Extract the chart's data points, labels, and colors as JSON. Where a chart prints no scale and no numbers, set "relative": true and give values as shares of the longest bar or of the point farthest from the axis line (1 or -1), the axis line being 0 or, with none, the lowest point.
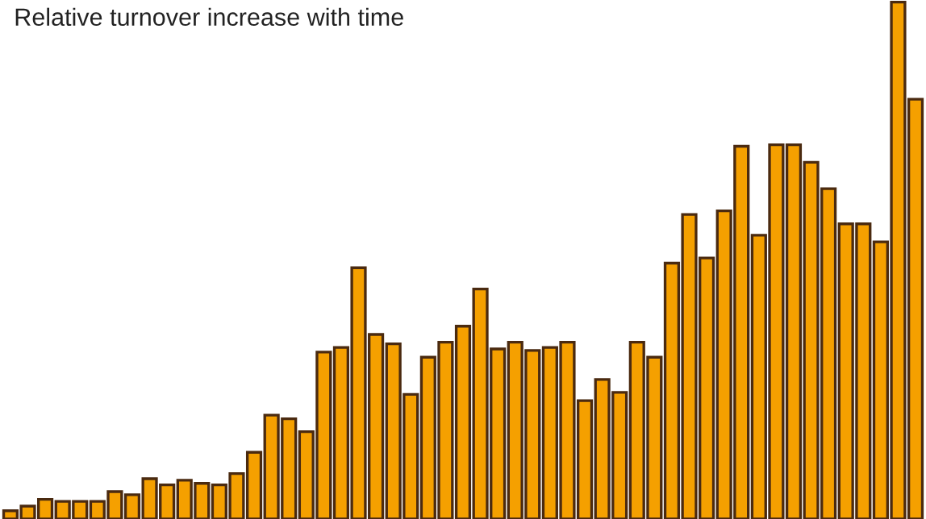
{
  "chart_data": {
    "type": "bar",
    "title": "Relative turnover increase with time",
    "relative": true,
    "color": "#f5a000",
    "categories": [
      null,
      null,
      null,
      null,
      null,
      null,
      null,
      null,
      null,
      null,
      null,
      null,
      null,
      null,
      null,
      null,
      null,
      null,
      null,
      null,
      null,
      null,
      null,
      null,
      null,
      null,
      null,
      null,
      null,
      null,
      null,
      null,
      null,
      null,
      null,
      null,
      null,
      null,
      null,
      null,
      null,
      null,
      null,
      null,
      null,
      null,
      null,
      null,
      null,
      null,
      null,
      null,
      null
    ],
    "values": [
      0.016,
      0.025,
      0.038,
      0.034,
      0.034,
      0.034,
      0.053,
      0.047,
      0.078,
      0.066,
      0.075,
      0.069,
      0.066,
      0.088,
      0.129,
      0.201,
      0.194,
      0.169,
      0.323,
      0.332,
      0.486,
      0.357,
      0.339,
      0.241,
      0.313,
      0.342,
      0.373,
      0.445,
      0.329,
      0.342,
      0.326,
      0.332,
      0.342,
      0.229,
      0.27,
      0.245,
      0.342,
      0.313,
      0.495,
      0.589,
      0.505,
      0.596,
      0.721,
      0.549,
      0.724,
      0.724,
      0.69,
      0.639,
      0.571,
      0.571,
      0.536,
      1,
      0.812
    ]
  }
}
